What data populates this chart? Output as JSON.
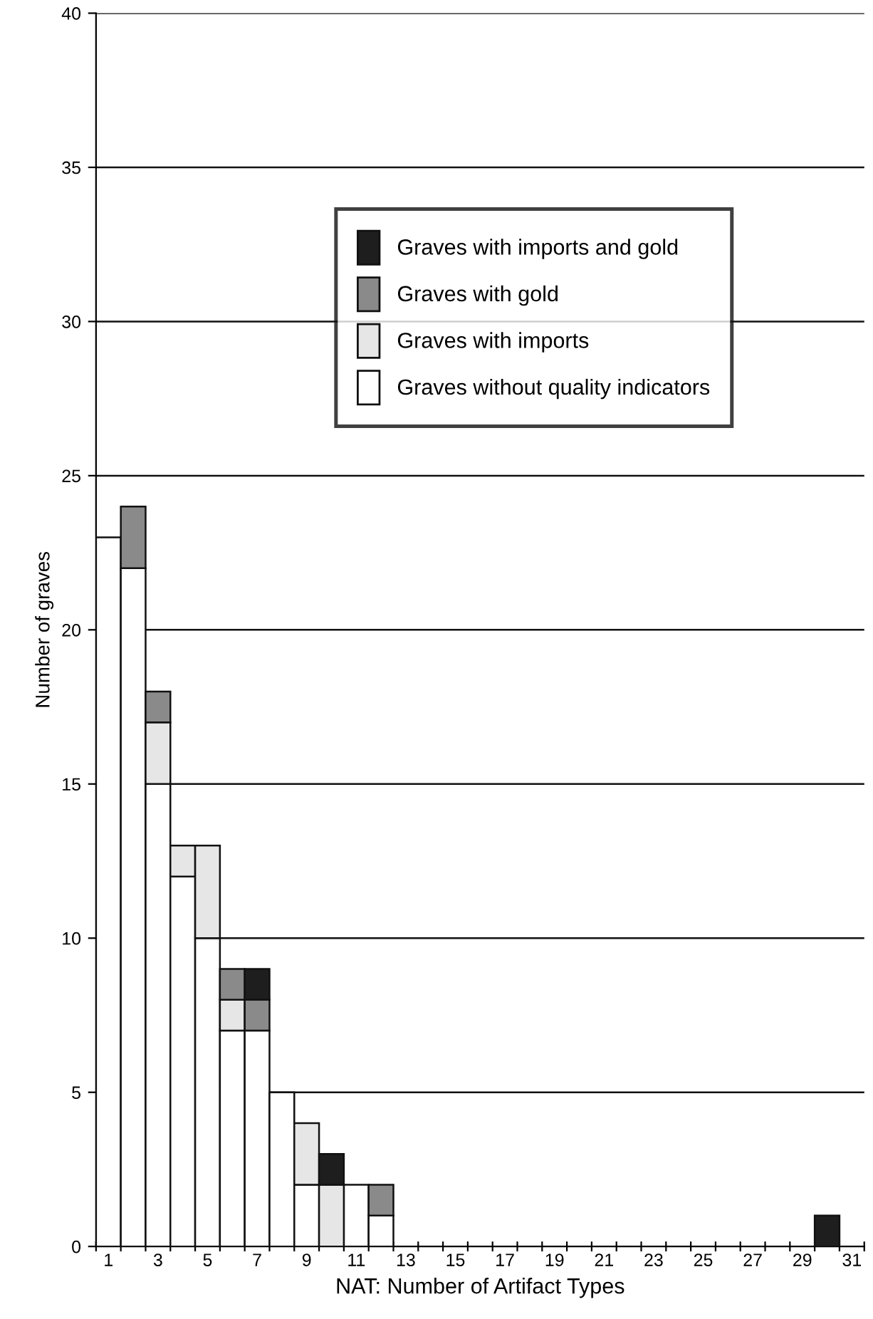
{
  "chart_data": {
    "type": "bar",
    "stacked": true,
    "xlabel": "NAT: Number of Artifact Types",
    "ylabel": "Number of graves",
    "categories": [
      "1",
      null,
      "3",
      null,
      "5",
      null,
      "7",
      null,
      "9",
      null,
      "11",
      null,
      "13",
      null,
      "15",
      null,
      "17",
      null,
      "19",
      null,
      "21",
      null,
      "23",
      null,
      "25",
      null,
      "27",
      null,
      "29",
      null,
      "31"
    ],
    "series": [
      {
        "name": "Graves without quality indicators",
        "color": "#ffffff",
        "values": [
          23,
          22,
          15,
          12,
          10,
          7,
          7,
          5,
          2,
          null,
          2,
          1,
          null,
          null,
          null,
          null,
          null,
          null,
          null,
          null,
          null,
          null,
          null,
          null,
          null,
          null,
          null,
          null,
          null,
          null,
          null
        ]
      },
      {
        "name": "Graves with imports",
        "color": "#e6e6e6",
        "values": [
          null,
          null,
          2,
          1,
          3,
          1,
          null,
          null,
          2,
          2,
          null,
          null,
          null,
          null,
          null,
          null,
          null,
          null,
          null,
          null,
          null,
          null,
          null,
          null,
          null,
          null,
          null,
          null,
          null,
          null,
          null
        ]
      },
      {
        "name": "Graves with gold",
        "color": "#8a8a8a",
        "values": [
          null,
          2,
          1,
          null,
          null,
          1,
          1,
          null,
          null,
          null,
          null,
          1,
          null,
          null,
          null,
          null,
          null,
          null,
          null,
          null,
          null,
          null,
          null,
          null,
          null,
          null,
          null,
          null,
          null,
          null,
          null
        ]
      },
      {
        "name": "Graves with imports and gold",
        "color": "#1e1e1e",
        "values": [
          null,
          null,
          null,
          null,
          null,
          null,
          1,
          null,
          null,
          1,
          null,
          null,
          null,
          null,
          null,
          null,
          null,
          null,
          null,
          null,
          null,
          null,
          null,
          null,
          null,
          null,
          null,
          null,
          null,
          1,
          null
        ]
      }
    ],
    "ylim": [
      0,
      40
    ],
    "yticks": [
      0,
      5,
      10,
      15,
      20,
      25,
      30,
      35,
      40
    ],
    "grid": "y",
    "legend": "top"
  }
}
